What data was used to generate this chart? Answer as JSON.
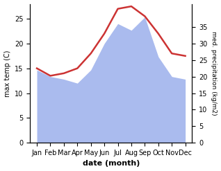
{
  "months": [
    "Jan",
    "Feb",
    "Mar",
    "Apr",
    "May",
    "Jun",
    "Jul",
    "Aug",
    "Sep",
    "Oct",
    "Nov",
    "Dec"
  ],
  "temperature": [
    15,
    13.5,
    14,
    15,
    18,
    22,
    27,
    27.5,
    25.5,
    22,
    18,
    17.5
  ],
  "precipitation": [
    55,
    50,
    48,
    45,
    55,
    75,
    90,
    85,
    95,
    65,
    50,
    48
  ],
  "temp_color": "#cc3333",
  "precip_color": "#aabbee",
  "temp_ylim": [
    0,
    28
  ],
  "precip_ylim": [
    0,
    105
  ],
  "temp_yticks": [
    0,
    5,
    10,
    15,
    20,
    25
  ],
  "precip_yticks": [
    0,
    12.5,
    25,
    37.5,
    50,
    62.5,
    75,
    87.5
  ],
  "precip_yticklabels": [
    "0",
    "5",
    "10",
    "15",
    "20",
    "25",
    "30",
    "35"
  ],
  "xlabel": "date (month)",
  "ylabel_left": "max temp (C)",
  "ylabel_right": "med. precipitation (kg/m2)",
  "background_color": "#ffffff",
  "label_fontsize": 7
}
